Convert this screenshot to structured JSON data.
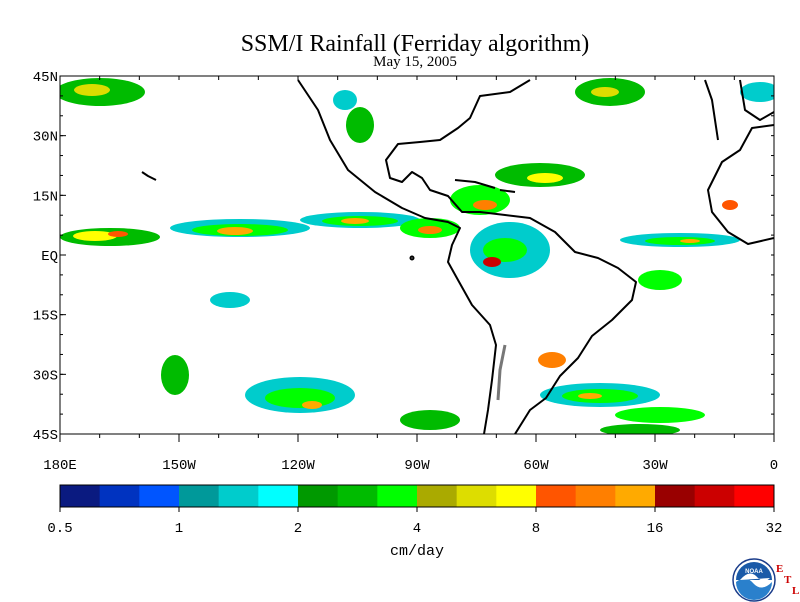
{
  "title": "SSM/I Rainfall (Ferriday algorithm)",
  "subtitle": "May 15, 2005",
  "map": {
    "extent": {
      "lon_min": -180,
      "lon_max": 0,
      "lat_min": -45,
      "lat_max": 45
    },
    "lat_ticks": [
      {
        "value": 45,
        "label": "45N"
      },
      {
        "value": 30,
        "label": "30N"
      },
      {
        "value": 15,
        "label": "15N"
      },
      {
        "value": 0,
        "label": "EQ"
      },
      {
        "value": -15,
        "label": "15S"
      },
      {
        "value": -30,
        "label": "30S"
      },
      {
        "value": -45,
        "label": "45S"
      }
    ],
    "lon_ticks": [
      {
        "value": -180,
        "label": "180E"
      },
      {
        "value": -150,
        "label": "150W"
      },
      {
        "value": -120,
        "label": "120W"
      },
      {
        "value": -90,
        "label": "90W"
      },
      {
        "value": -60,
        "label": "60W"
      },
      {
        "value": -30,
        "label": "30W"
      },
      {
        "value": 0,
        "label": "0"
      }
    ]
  },
  "colorbar": {
    "unit_label": "cm/day",
    "tick_labels": [
      "0.5",
      "1",
      "2",
      "4",
      "8",
      "16",
      "32"
    ],
    "colors": [
      "#0a1a80",
      "#0033c0",
      "#0055ff",
      "#00999a",
      "#00cccc",
      "#00ffff",
      "#009900",
      "#00bb00",
      "#00ff00",
      "#aaaa00",
      "#dddd00",
      "#ffff00",
      "#ff5500",
      "#ff7f00",
      "#ffaa00",
      "#990000",
      "#cc0000",
      "#ff0000"
    ]
  },
  "logo": {
    "text": "NOAA",
    "lab_letters": [
      "E",
      "T",
      "L"
    ],
    "icon": "noaa-logo-icon"
  }
}
